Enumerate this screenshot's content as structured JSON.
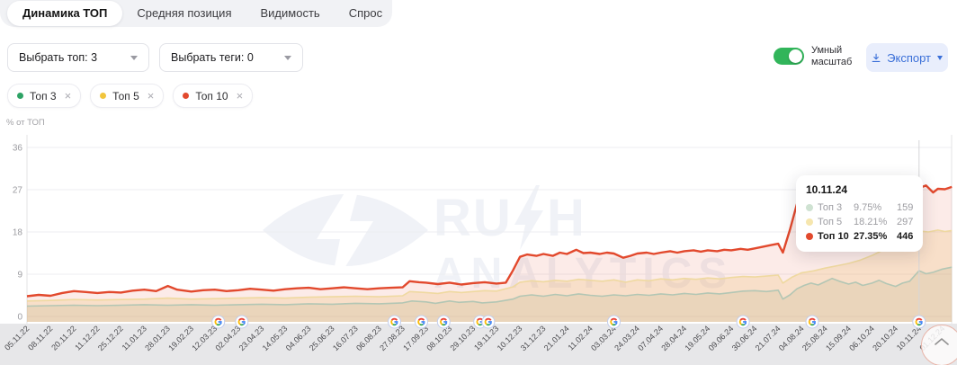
{
  "tabs": [
    {
      "label": "Динамика ТОП",
      "active": true
    },
    {
      "label": "Средняя позиция",
      "active": false
    },
    {
      "label": "Видимость",
      "active": false
    },
    {
      "label": "Спрос",
      "active": false
    }
  ],
  "controls": {
    "select_top": {
      "value": "Выбрать топ: 3"
    },
    "select_tags": {
      "value": "Выбрать теги: 0"
    },
    "smart_scale": {
      "line1": "Умный",
      "line2": "масштаб",
      "state": "on",
      "color": "#31b55a"
    },
    "export": {
      "label": "Экспорт",
      "color": "#3a6fd8",
      "bg": "#e9eefc"
    }
  },
  "legend_chips": [
    {
      "label": "Топ 3",
      "dot_color": "#2ea365"
    },
    {
      "label": "Топ 5",
      "dot_color": "#f1c53d"
    },
    {
      "label": "Топ 10",
      "dot_color": "#e2492d"
    }
  ],
  "chart_data": {
    "type": "line",
    "y_axis": {
      "title": "% от ТОП",
      "ticks": [
        36,
        27,
        18,
        9,
        0
      ],
      "max": 36
    },
    "x_labels": [
      "05.11.22",
      "08.11.22",
      "20.11.22",
      "11.12.22",
      "25.12.22",
      "11.01.23",
      "28.01.23",
      "19.02.23",
      "12.03.23",
      "02.04.23",
      "23.04.23",
      "14.05.23",
      "04.06.23",
      "25.06.23",
      "16.07.23",
      "06.08.23",
      "27.08.23",
      "17.09.23",
      "08.10.23",
      "29.10.23",
      "19.11.23",
      "10.12.23",
      "31.12.23",
      "21.01.24",
      "11.02.24",
      "03.03.24",
      "24.03.24",
      "07.04.24",
      "28.04.24",
      "19.05.24",
      "09.06.24",
      "30.06.24",
      "21.07.24",
      "04.08.24",
      "25.08.24",
      "15.09.24",
      "06.10.24",
      "20.10.24",
      "10.11.24",
      "01.12.24"
    ],
    "google_update_markers": [
      8.15,
      9.15,
      15.65,
      16.8,
      17.75,
      19.3,
      19.65,
      25.0,
      30.5,
      33.45,
      38.0
    ],
    "crosshair_tick": 38,
    "series": [
      {
        "name": "Топ 3",
        "color": "#b3c6b4",
        "fill": "rgba(160,190,160,0.22)",
        "stroke_width": 1.6,
        "points": [
          [
            0,
            2.2
          ],
          [
            1,
            2.3
          ],
          [
            2,
            2.4
          ],
          [
            3,
            2.3
          ],
          [
            4,
            2.4
          ],
          [
            5,
            2.5
          ],
          [
            6,
            2.4
          ],
          [
            7,
            2.5
          ],
          [
            8,
            2.4
          ],
          [
            9,
            2.5
          ],
          [
            10,
            2.6
          ],
          [
            11,
            2.5
          ],
          [
            12,
            2.7
          ],
          [
            13,
            2.6
          ],
          [
            14,
            2.8
          ],
          [
            15,
            2.7
          ],
          [
            16,
            2.9
          ],
          [
            16.4,
            3.3
          ],
          [
            17,
            3.1
          ],
          [
            17.4,
            2.8
          ],
          [
            18,
            3.3
          ],
          [
            18.4,
            3.0
          ],
          [
            19,
            3.2
          ],
          [
            19.4,
            2.9
          ],
          [
            20,
            3.1
          ],
          [
            20.7,
            3.7
          ],
          [
            21,
            4.3
          ],
          [
            21.5,
            4.6
          ],
          [
            22,
            4.3
          ],
          [
            22.5,
            4.7
          ],
          [
            23,
            4.4
          ],
          [
            23.5,
            4.8
          ],
          [
            24,
            4.5
          ],
          [
            24.5,
            4.3
          ],
          [
            25,
            4.6
          ],
          [
            25.5,
            4.4
          ],
          [
            26,
            4.7
          ],
          [
            26.5,
            4.5
          ],
          [
            27,
            4.8
          ],
          [
            27.5,
            4.6
          ],
          [
            28,
            4.9
          ],
          [
            28.5,
            4.7
          ],
          [
            29,
            5.0
          ],
          [
            29.5,
            4.8
          ],
          [
            30,
            5.1
          ],
          [
            30.5,
            5.4
          ],
          [
            31,
            5.5
          ],
          [
            31.5,
            5.3
          ],
          [
            32,
            5.6
          ],
          [
            32.2,
            3.7
          ],
          [
            32.5,
            4.6
          ],
          [
            32.8,
            5.9
          ],
          [
            33.1,
            6.6
          ],
          [
            33.4,
            7.1
          ],
          [
            33.7,
            6.7
          ],
          [
            34,
            7.4
          ],
          [
            34.3,
            8.1
          ],
          [
            34.6,
            7.5
          ],
          [
            35,
            6.9
          ],
          [
            35.3,
            7.3
          ],
          [
            35.6,
            6.6
          ],
          [
            36,
            7.1
          ],
          [
            36.3,
            7.7
          ],
          [
            36.6,
            7.0
          ],
          [
            37,
            6.4
          ],
          [
            37.3,
            7.1
          ],
          [
            37.6,
            7.5
          ],
          [
            38,
            9.75
          ],
          [
            38.3,
            9.1
          ],
          [
            38.6,
            9.4
          ],
          [
            39,
            10.1
          ],
          [
            39.4,
            10.5
          ]
        ]
      },
      {
        "name": "Топ 5",
        "color": "#efd9a0",
        "fill": "rgba(238,205,120,0.25)",
        "stroke_width": 1.6,
        "points": [
          [
            0,
            3.3
          ],
          [
            1,
            3.4
          ],
          [
            2,
            3.6
          ],
          [
            3,
            3.5
          ],
          [
            4,
            3.6
          ],
          [
            5,
            3.7
          ],
          [
            6,
            3.9
          ],
          [
            7,
            3.7
          ],
          [
            8,
            3.8
          ],
          [
            9,
            3.9
          ],
          [
            10,
            4.0
          ],
          [
            11,
            3.9
          ],
          [
            12,
            4.1
          ],
          [
            13,
            4.2
          ],
          [
            14,
            4.3
          ],
          [
            15,
            4.2
          ],
          [
            16,
            4.4
          ],
          [
            16.3,
            5.3
          ],
          [
            17,
            5.1
          ],
          [
            17.5,
            4.9
          ],
          [
            18,
            5.3
          ],
          [
            18.5,
            5.1
          ],
          [
            19,
            5.3
          ],
          [
            19.5,
            5.5
          ],
          [
            20,
            5.4
          ],
          [
            20.7,
            6.3
          ],
          [
            21,
            7.3
          ],
          [
            21.5,
            7.6
          ],
          [
            22,
            7.4
          ],
          [
            22.5,
            7.7
          ],
          [
            23,
            7.5
          ],
          [
            23.5,
            7.9
          ],
          [
            24,
            7.7
          ],
          [
            24.5,
            7.5
          ],
          [
            25,
            7.8
          ],
          [
            25.5,
            7.3
          ],
          [
            26,
            7.8
          ],
          [
            26.5,
            7.6
          ],
          [
            27,
            8.0
          ],
          [
            27.5,
            7.8
          ],
          [
            28,
            8.1
          ],
          [
            28.5,
            7.9
          ],
          [
            29,
            8.2
          ],
          [
            29.5,
            8.0
          ],
          [
            30,
            8.3
          ],
          [
            30.5,
            8.5
          ],
          [
            31,
            8.4
          ],
          [
            31.5,
            8.6
          ],
          [
            32,
            8.8
          ],
          [
            32.2,
            7.1
          ],
          [
            32.6,
            8.4
          ],
          [
            33,
            9.3
          ],
          [
            33.5,
            9.7
          ],
          [
            34,
            10.3
          ],
          [
            34.5,
            10.8
          ],
          [
            35,
            11.3
          ],
          [
            35.5,
            12.0
          ],
          [
            36,
            13.0
          ],
          [
            36.5,
            14.2
          ],
          [
            37,
            15.6
          ],
          [
            37.5,
            17.0
          ],
          [
            38,
            18.21
          ],
          [
            38.4,
            18.0
          ],
          [
            38.8,
            18.4
          ],
          [
            39.1,
            18.1
          ],
          [
            39.4,
            18.3
          ]
        ]
      },
      {
        "name": "Топ 10",
        "color": "#e2492d",
        "fill": "rgba(226,73,45,0.11)",
        "stroke_width": 2.4,
        "points": [
          [
            0,
            4.3
          ],
          [
            0.5,
            4.6
          ],
          [
            1,
            4.4
          ],
          [
            1.5,
            5.0
          ],
          [
            2,
            5.4
          ],
          [
            2.5,
            5.2
          ],
          [
            3,
            5.0
          ],
          [
            3.5,
            5.2
          ],
          [
            4,
            5.1
          ],
          [
            4.5,
            5.5
          ],
          [
            5,
            5.7
          ],
          [
            5.5,
            5.4
          ],
          [
            6,
            6.5
          ],
          [
            6.4,
            5.7
          ],
          [
            7,
            5.3
          ],
          [
            7.5,
            5.6
          ],
          [
            8,
            5.7
          ],
          [
            8.5,
            5.4
          ],
          [
            9,
            5.6
          ],
          [
            9.5,
            5.9
          ],
          [
            10,
            5.7
          ],
          [
            10.5,
            5.5
          ],
          [
            11,
            5.8
          ],
          [
            11.5,
            6.0
          ],
          [
            12,
            6.1
          ],
          [
            12.5,
            5.8
          ],
          [
            13,
            6.0
          ],
          [
            13.5,
            6.2
          ],
          [
            14,
            6.0
          ],
          [
            14.5,
            5.8
          ],
          [
            15,
            6.0
          ],
          [
            15.5,
            6.1
          ],
          [
            16,
            6.2
          ],
          [
            16.3,
            7.5
          ],
          [
            16.7,
            7.3
          ],
          [
            17,
            7.2
          ],
          [
            17.5,
            6.9
          ],
          [
            18,
            7.2
          ],
          [
            18.5,
            6.8
          ],
          [
            19,
            7.1
          ],
          [
            19.5,
            7.3
          ],
          [
            20,
            7.0
          ],
          [
            20.4,
            7.2
          ],
          [
            20.7,
            9.8
          ],
          [
            21,
            12.7
          ],
          [
            21.3,
            13.2
          ],
          [
            21.7,
            12.9
          ],
          [
            22,
            13.3
          ],
          [
            22.4,
            12.9
          ],
          [
            22.7,
            13.6
          ],
          [
            23,
            13.3
          ],
          [
            23.4,
            14.2
          ],
          [
            23.7,
            13.5
          ],
          [
            24,
            13.6
          ],
          [
            24.4,
            13.3
          ],
          [
            24.7,
            13.6
          ],
          [
            25,
            13.4
          ],
          [
            25.4,
            12.5
          ],
          [
            25.7,
            12.9
          ],
          [
            26,
            13.4
          ],
          [
            26.4,
            13.6
          ],
          [
            26.7,
            13.3
          ],
          [
            27,
            13.6
          ],
          [
            27.4,
            13.9
          ],
          [
            27.7,
            13.6
          ],
          [
            28,
            13.9
          ],
          [
            28.4,
            14.1
          ],
          [
            28.7,
            13.8
          ],
          [
            29,
            14.1
          ],
          [
            29.4,
            13.9
          ],
          [
            29.7,
            14.2
          ],
          [
            30,
            14.1
          ],
          [
            30.4,
            14.4
          ],
          [
            30.7,
            14.2
          ],
          [
            31,
            14.5
          ],
          [
            31.4,
            14.9
          ],
          [
            31.7,
            15.2
          ],
          [
            32,
            15.5
          ],
          [
            32.2,
            13.6
          ],
          [
            32.5,
            18.5
          ],
          [
            32.8,
            24.0
          ],
          [
            33.1,
            22.7
          ],
          [
            33.4,
            23.6
          ],
          [
            33.7,
            23.2
          ],
          [
            34,
            24.2
          ],
          [
            34.4,
            23.8
          ],
          [
            34.7,
            24.6
          ],
          [
            35,
            24.3
          ],
          [
            35.4,
            25.2
          ],
          [
            35.7,
            24.8
          ],
          [
            36,
            25.6
          ],
          [
            36.4,
            26.0
          ],
          [
            36.7,
            25.7
          ],
          [
            37,
            26.4
          ],
          [
            37.3,
            27.0
          ],
          [
            37.6,
            26.6
          ],
          [
            38,
            27.35
          ],
          [
            38.3,
            27.9
          ],
          [
            38.6,
            26.4
          ],
          [
            38.8,
            27.2
          ],
          [
            39.1,
            27.1
          ],
          [
            39.4,
            27.6
          ]
        ]
      }
    ],
    "tooltip": {
      "date": "10.11.24",
      "rows": [
        {
          "name": "Топ 3",
          "percent": "9.75%",
          "value": "159",
          "dot_color": "#cfe2d2",
          "emphasized": false
        },
        {
          "name": "Топ 5",
          "percent": "18.21%",
          "value": "297",
          "dot_color": "#f6e6ae",
          "emphasized": false
        },
        {
          "name": "Топ 10",
          "percent": "27.35%",
          "value": "446",
          "dot_color": "#e2492d",
          "emphasized": true
        }
      ]
    },
    "watermark": {
      "line1_left": "RU",
      "line1_right": "H",
      "line2": "ANALYTICS"
    },
    "legend_position": "top-left-chips",
    "grid": true
  }
}
